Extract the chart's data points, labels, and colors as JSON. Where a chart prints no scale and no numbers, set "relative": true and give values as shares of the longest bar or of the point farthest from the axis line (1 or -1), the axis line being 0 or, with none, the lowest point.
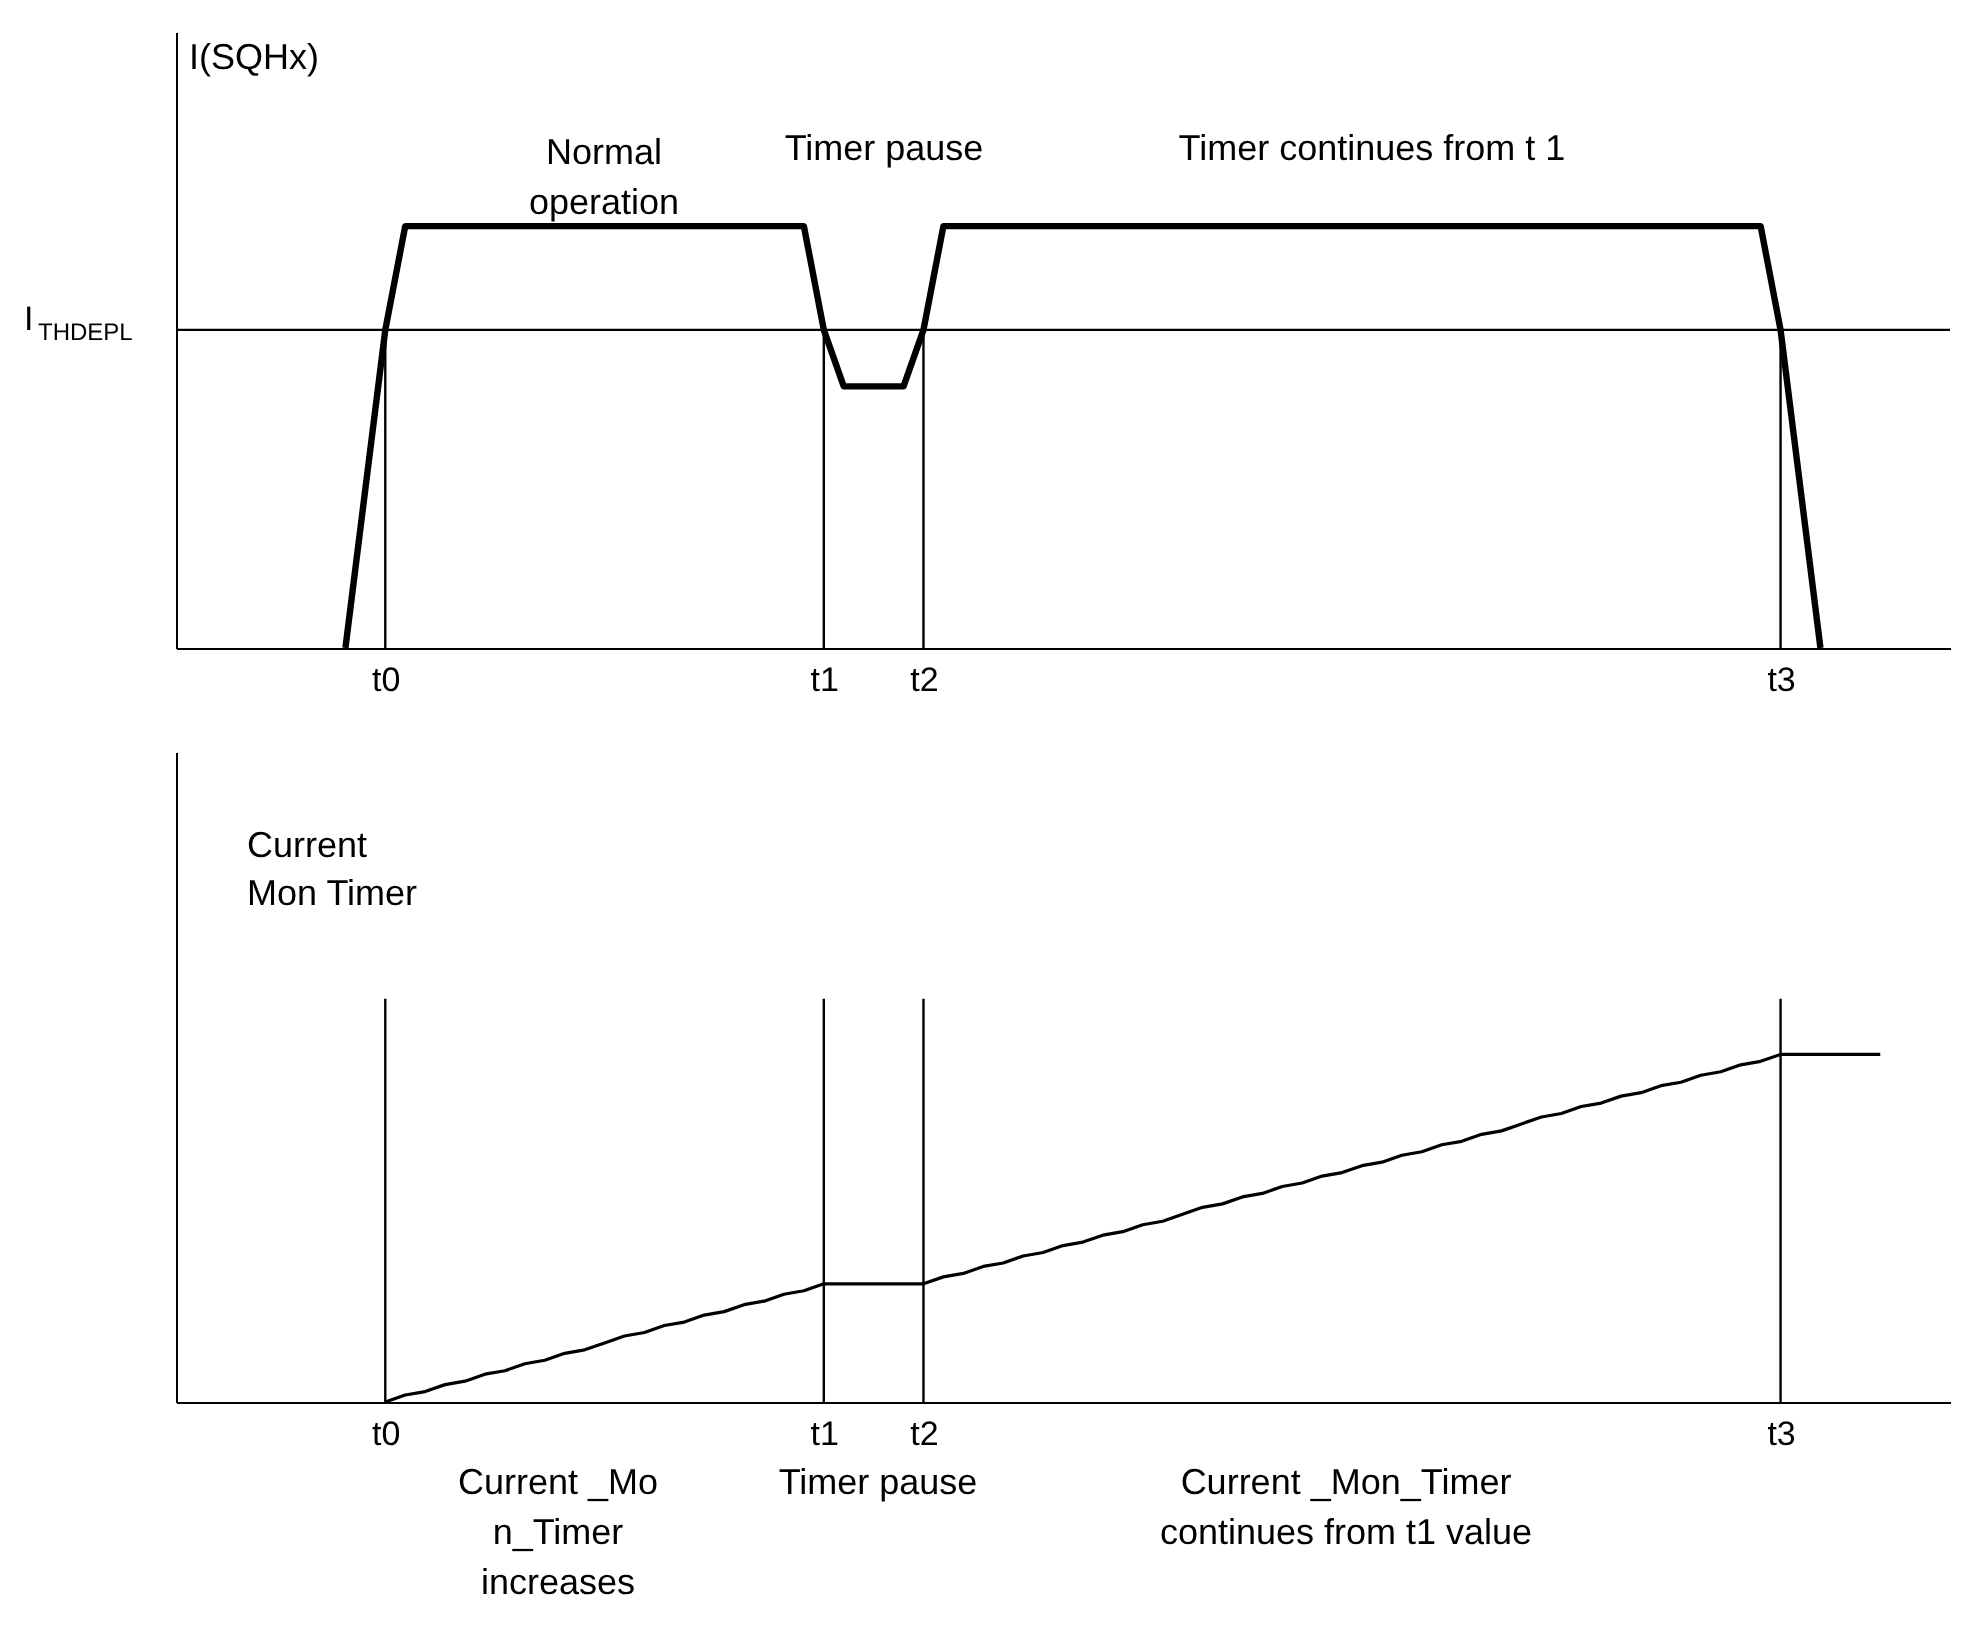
{
  "chart_data": [
    {
      "type": "line",
      "ylabel": "I(SQHx)",
      "relative": true,
      "categories": [
        null,
        null,
        null,
        null,
        null,
        null,
        null,
        null,
        null,
        null,
        "t0",
        null,
        null,
        null,
        null,
        null,
        null,
        null,
        null,
        null,
        null,
        null,
        null,
        null,
        null,
        null,
        null,
        null,
        null,
        null,
        null,
        null,
        "t1",
        null,
        null,
        null,
        null,
        "t2",
        null,
        null,
        null,
        null,
        null,
        null,
        null,
        null,
        null,
        null,
        null,
        null,
        null,
        null,
        null,
        null,
        null,
        null,
        null,
        null,
        null,
        null,
        null,
        null,
        null,
        null,
        null,
        null,
        null,
        null,
        null,
        null,
        null,
        null,
        null,
        null,
        null,
        null,
        null,
        null,
        null,
        null,
        "t3",
        null,
        null,
        null,
        null,
        null,
        null,
        null,
        null
      ],
      "series": [
        {
          "color": "#000000",
          "values": [
            null,
            null,
            null,
            null,
            null,
            null,
            null,
            null,
            0,
            0.377,
            0.754,
            1,
            1,
            1,
            1,
            1,
            1,
            1,
            1,
            1,
            1,
            1,
            1,
            1,
            1,
            1,
            1,
            1,
            1,
            1,
            1,
            1,
            0.754,
            0.62,
            0.62,
            0.62,
            0.62,
            0.754,
            1,
            1,
            1,
            1,
            1,
            1,
            1,
            1,
            1,
            1,
            1,
            1,
            1,
            1,
            1,
            1,
            1,
            1,
            1,
            1,
            1,
            1,
            1,
            1,
            1,
            1,
            1,
            1,
            1,
            1,
            1,
            1,
            1,
            1,
            1,
            1,
            1,
            1,
            1,
            1,
            1,
            1,
            0.754,
            0.377,
            0,
            null,
            null,
            null,
            null,
            null,
            null
          ]
        }
      ],
      "ref_lines": [
        {
          "axis": "y",
          "value": 0.754,
          "label": "I$_{THDEPL}$"
        },
        {
          "axis": "x",
          "value": "t0"
        },
        {
          "axis": "x",
          "value": "t1"
        },
        {
          "axis": "x",
          "value": "t2"
        },
        {
          "axis": "x",
          "value": "t3"
        }
      ],
      "annotations": [
        "Normal\noperation",
        "Timer pause",
        "Timer continues from t   1"
      ]
    },
    {
      "type": "line",
      "ylabel": "Current\nMon Timer",
      "relative": true,
      "categories": [
        null,
        null,
        null,
        null,
        null,
        null,
        null,
        null,
        null,
        null,
        "t0",
        null,
        null,
        null,
        null,
        null,
        null,
        null,
        null,
        null,
        null,
        null,
        null,
        null,
        null,
        null,
        null,
        null,
        null,
        null,
        null,
        null,
        "t1",
        null,
        null,
        null,
        null,
        "t2",
        null,
        null,
        null,
        null,
        null,
        null,
        null,
        null,
        null,
        null,
        null,
        null,
        null,
        null,
        null,
        null,
        null,
        null,
        null,
        null,
        null,
        null,
        null,
        null,
        null,
        null,
        null,
        null,
        null,
        null,
        null,
        null,
        null,
        null,
        null,
        null,
        null,
        null,
        null,
        null,
        null,
        null,
        "t3",
        null,
        null,
        null,
        null,
        null,
        null,
        null,
        null
      ],
      "series": [
        {
          "color": "#000000",
          "values": [
            null,
            null,
            null,
            null,
            null,
            null,
            null,
            null,
            null,
            null,
            0,
            0.02,
            0.03,
            0.05,
            0.06,
            0.08,
            0.09,
            0.11,
            0.12,
            0.14,
            0.15,
            0.17,
            0.19,
            0.2,
            0.22,
            0.23,
            0.25,
            0.26,
            0.28,
            0.29,
            0.31,
            0.32,
            0.34,
            0.34,
            0.34,
            0.34,
            0.34,
            0.34,
            0.36,
            0.37,
            0.39,
            0.4,
            0.42,
            0.43,
            0.45,
            0.46,
            0.48,
            0.49,
            0.51,
            0.52,
            0.54,
            0.56,
            0.57,
            0.59,
            0.6,
            0.62,
            0.63,
            0.65,
            0.66,
            0.68,
            0.69,
            0.71,
            0.72,
            0.74,
            0.75,
            0.77,
            0.78,
            0.8,
            0.82,
            0.83,
            0.85,
            0.86,
            0.88,
            0.89,
            0.91,
            0.92,
            0.94,
            0.95,
            0.97,
            0.98,
            1,
            1,
            1,
            1,
            1,
            1,
            null,
            null,
            null
          ]
        }
      ],
      "ref_lines": [
        {
          "axis": "x",
          "value": "t0"
        },
        {
          "axis": "x",
          "value": "t1"
        },
        {
          "axis": "x",
          "value": "t2"
        },
        {
          "axis": "x",
          "value": "t3"
        }
      ],
      "annotations": [
        "Current _Mo\nn_Timer\nincreases",
        "Timer pause",
        "Current _Mon_Timer\ncontinues from t1 value"
      ]
    }
  ]
}
